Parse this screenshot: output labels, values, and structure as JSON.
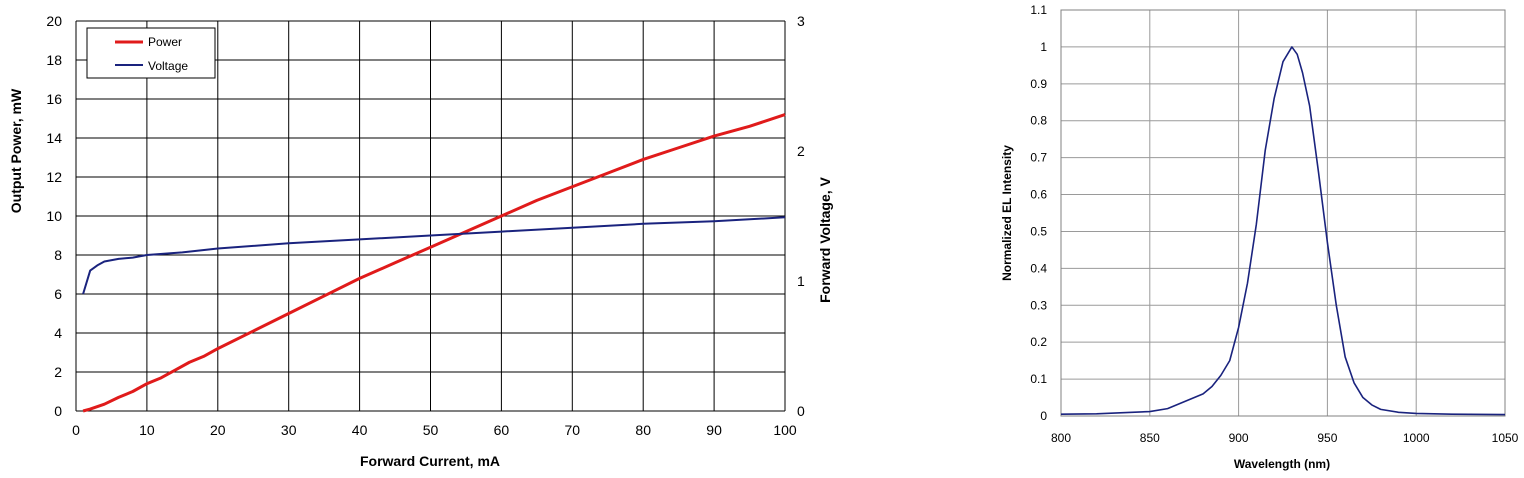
{
  "colors": {
    "power": "#e01b1b",
    "voltage": "#1a237e",
    "spectrum": "#1a237e",
    "grid_left": "#000000",
    "grid_right": "#9a9a9a"
  },
  "chart_data": [
    {
      "type": "line",
      "xlabel": "Forward Current, mA",
      "ylabel": "Output Power, mW",
      "y2label": "Forward Voltage, V",
      "xlim": [
        0,
        100
      ],
      "ylim": [
        0,
        20
      ],
      "y2lim": [
        0,
        3
      ],
      "xticks": [
        "0",
        "10",
        "20",
        "30",
        "40",
        "50",
        "60",
        "70",
        "80",
        "90",
        "100"
      ],
      "yticks": [
        "0",
        "2",
        "4",
        "6",
        "8",
        "10",
        "12",
        "14",
        "16",
        "18",
        "20"
      ],
      "y2ticks": [
        "0",
        "1",
        "2",
        "3"
      ],
      "grid": true,
      "legend_position": "top-left",
      "series": [
        {
          "name": "Power",
          "axis": "left",
          "x": [
            1,
            2,
            4,
            6,
            8,
            10,
            12,
            14,
            16,
            18,
            20,
            25,
            30,
            35,
            40,
            45,
            50,
            55,
            60,
            65,
            70,
            75,
            80,
            85,
            90,
            95,
            100
          ],
          "y": [
            0.0,
            0.1,
            0.35,
            0.7,
            1.0,
            1.4,
            1.7,
            2.1,
            2.5,
            2.8,
            3.2,
            4.1,
            5.0,
            5.9,
            6.8,
            7.6,
            8.4,
            9.2,
            10.0,
            10.8,
            11.5,
            12.2,
            12.9,
            13.5,
            14.1,
            14.6,
            15.2
          ]
        },
        {
          "name": "Voltage",
          "axis": "right",
          "x": [
            1,
            2,
            3,
            4,
            6,
            8,
            10,
            15,
            20,
            30,
            40,
            50,
            60,
            70,
            80,
            90,
            100
          ],
          "y": [
            0.9,
            1.08,
            1.12,
            1.15,
            1.17,
            1.18,
            1.2,
            1.22,
            1.25,
            1.29,
            1.32,
            1.35,
            1.38,
            1.41,
            1.44,
            1.46,
            1.49
          ]
        }
      ]
    },
    {
      "type": "line",
      "xlabel": "Wavelength (nm)",
      "ylabel": "Normalized EL Intensity",
      "xlim": [
        800,
        1050
      ],
      "ylim": [
        0,
        1.1
      ],
      "xticks": [
        "800",
        "850",
        "900",
        "950",
        "1000",
        "1050"
      ],
      "yticks": [
        "0",
        "0.1",
        "0.2",
        "0.3",
        "0.4",
        "0.5",
        "0.6",
        "0.7",
        "0.8",
        "0.9",
        "1",
        "1.1"
      ],
      "grid": true,
      "series": [
        {
          "x": [
            800,
            820,
            840,
            850,
            860,
            870,
            880,
            885,
            890,
            895,
            900,
            905,
            910,
            915,
            920,
            925,
            930,
            933,
            936,
            940,
            945,
            950,
            955,
            960,
            965,
            970,
            975,
            980,
            990,
            1000,
            1020,
            1050
          ],
          "y": [
            0.005,
            0.006,
            0.01,
            0.012,
            0.02,
            0.04,
            0.06,
            0.08,
            0.11,
            0.15,
            0.24,
            0.36,
            0.52,
            0.72,
            0.86,
            0.96,
            1.0,
            0.98,
            0.93,
            0.84,
            0.66,
            0.47,
            0.3,
            0.16,
            0.09,
            0.05,
            0.03,
            0.018,
            0.01,
            0.007,
            0.005,
            0.004
          ]
        }
      ]
    }
  ]
}
